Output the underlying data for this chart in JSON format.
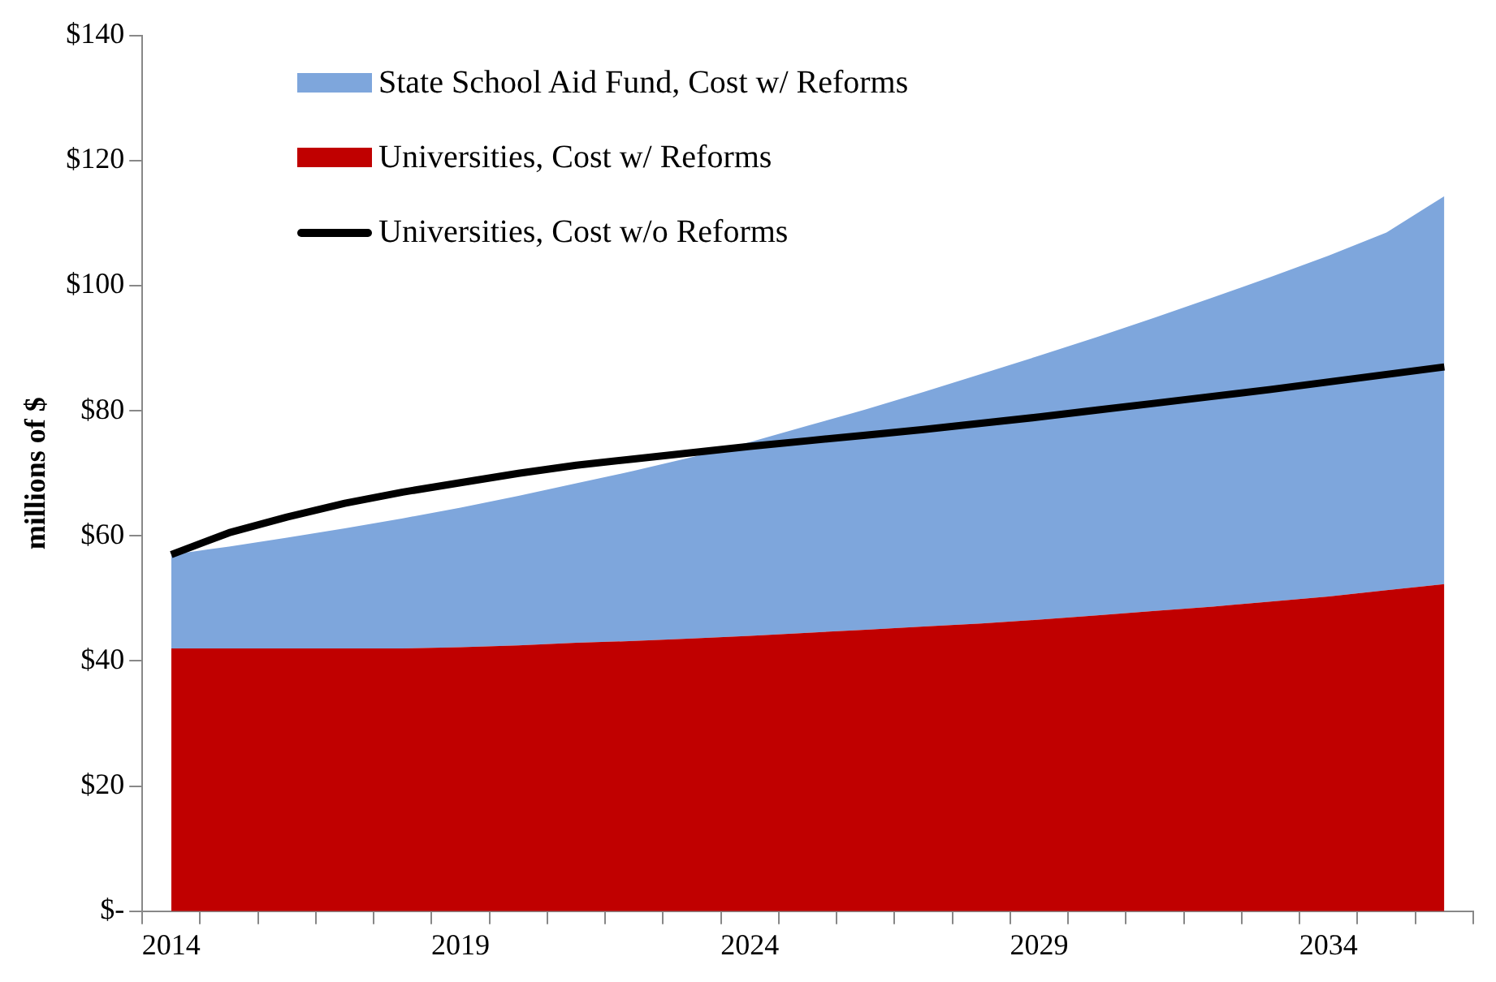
{
  "chart_data": {
    "type": "area",
    "ylabel": "millions of $",
    "categories": [
      "2014",
      null,
      null,
      null,
      null,
      "2019",
      null,
      null,
      null,
      null,
      "2024",
      null,
      null,
      null,
      null,
      "2029",
      null,
      null,
      null,
      null,
      "2034",
      null,
      null
    ],
    "stacked": true,
    "ylim": [
      0,
      140
    ],
    "yticks": [
      {
        "value": 0,
        "label": "$-"
      },
      {
        "value": 20,
        "label": "$20"
      },
      {
        "value": 40,
        "label": "$40"
      },
      {
        "value": 60,
        "label": "$60"
      },
      {
        "value": 80,
        "label": "$80"
      },
      {
        "value": 100,
        "label": "$100"
      },
      {
        "value": 120,
        "label": "$120"
      },
      {
        "value": 140,
        "label": "$140"
      }
    ],
    "grid": false,
    "legend": "top left",
    "marker": "none",
    "line_style": "solid",
    "series": [
      {
        "name": "Universities, Cost w/ Reforms",
        "color": "#c00000",
        "values": [
          42,
          42,
          42,
          42,
          42,
          42.2,
          42.5,
          42.9,
          43.2,
          43.6,
          44,
          44.5,
          45,
          45.5,
          46,
          46.6,
          47.3,
          48,
          48.7,
          49.5,
          50.3,
          51.3,
          52.3
        ]
      },
      {
        "name": "State School Aid Fund, Cost w/ Reforms",
        "color": "#7ea6dc",
        "values": [
          15,
          16.3,
          17.7,
          19.2,
          20.8,
          22.3,
          23.9,
          25.5,
          27.2,
          29,
          31,
          33.1,
          35.2,
          37.5,
          39.9,
          42.2,
          44.5,
          46.9,
          49.4,
          51.9,
          54.5,
          57.2,
          62
        ]
      },
      {
        "name": "Universities, Cost w/o Reforms",
        "type": "line",
        "color": "#000000",
        "values": [
          57,
          60.5,
          63,
          65.2,
          67,
          68.5,
          70,
          71.3,
          72.3,
          73.3,
          74.3,
          75.2,
          76.1,
          77,
          78,
          79,
          80.1,
          81.2,
          82.3,
          83.4,
          84.6,
          85.8,
          87
        ]
      }
    ]
  }
}
